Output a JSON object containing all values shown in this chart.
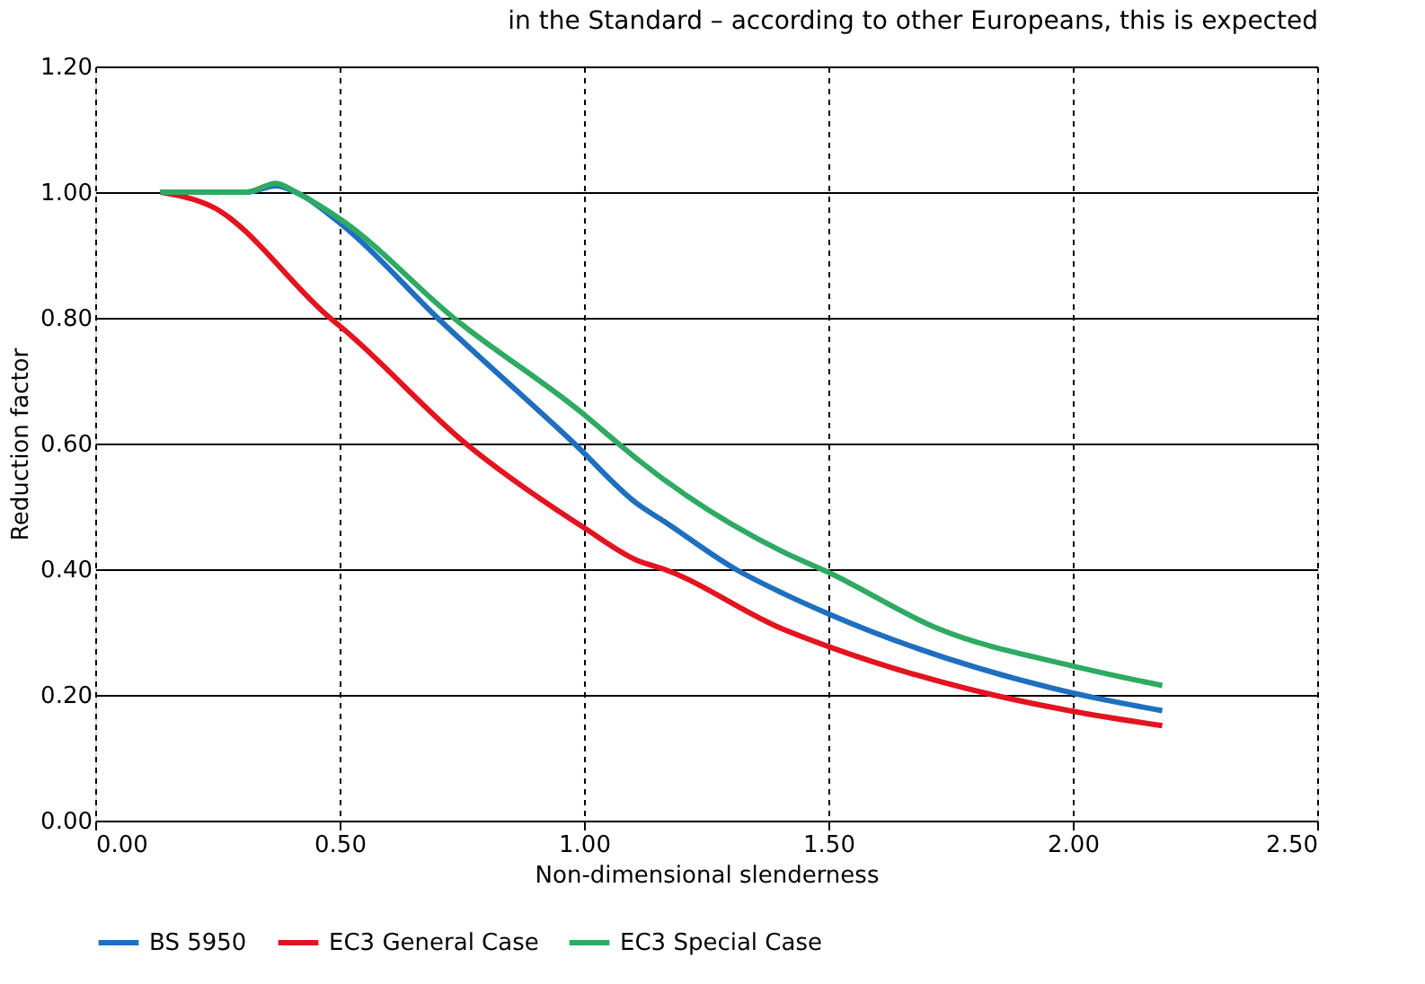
{
  "chart_data": {
    "type": "line",
    "xlabel": "Non-dimensional slenderness",
    "ylabel": "Reduction factor",
    "annotations": [
      "in the Standard – according to other Europeans, this is expected"
    ],
    "xlim": [
      0,
      2.5
    ],
    "xticks": [
      {
        "value": 0,
        "label": "0.00"
      },
      {
        "value": 0.5,
        "label": "0.50"
      },
      {
        "value": 1,
        "label": "1.00"
      },
      {
        "value": 1.5,
        "label": "1.50"
      },
      {
        "value": 2,
        "label": "2.00"
      },
      {
        "value": 2.5,
        "label": "2.50"
      }
    ],
    "ylim": [
      0,
      1.2
    ],
    "yticks": [
      {
        "value": 0,
        "label": "0.00"
      },
      {
        "value": 0.2,
        "label": "0.20"
      },
      {
        "value": 0.4,
        "label": "0.40"
      },
      {
        "value": 0.6,
        "label": "0.60"
      },
      {
        "value": 0.8,
        "label": "0.80"
      },
      {
        "value": 1,
        "label": "1.00"
      },
      {
        "value": 1.2,
        "label": "1.20"
      }
    ],
    "grid": true,
    "legend": "bottom",
    "marker": "none",
    "line_style": "solid",
    "series": [
      {
        "name": "BS 5950",
        "color": "#1f6fbf",
        "x": [
          0.133,
          0.31,
          0.37,
          0.41,
          0.505,
          0.7,
          0.98,
          1.109,
          1.164,
          1.31,
          1.406,
          1.5,
          2.0,
          2.183
        ],
        "values": [
          1.0,
          1.0,
          1.01,
          1.0,
          0.948,
          0.8,
          0.6,
          0.504,
          0.476,
          0.4,
          0.362,
          0.329,
          0.203,
          0.175
        ]
      },
      {
        "name": "EC3 General Case",
        "color": "#e3141f",
        "x": [
          0.133,
          0.236,
          0.48,
          0.505,
          0.758,
          1.0,
          1.109,
          1.164,
          1.406,
          1.5,
          1.837,
          2.0,
          2.183
        ],
        "values": [
          1.0,
          0.978,
          0.8,
          0.784,
          0.6,
          0.466,
          0.414,
          0.4,
          0.305,
          0.277,
          0.2,
          0.174,
          0.151
        ]
      },
      {
        "name": "EC3 Special Case",
        "color": "#2eaa62",
        "x": [
          0.133,
          0.31,
          0.37,
          0.41,
          0.505,
          0.733,
          1.0,
          1.07,
          1.109,
          1.406,
          1.5,
          1.726,
          2.0,
          2.183
        ],
        "values": [
          1.0,
          1.0,
          1.014,
          1.0,
          0.955,
          0.8,
          0.646,
          0.6,
          0.575,
          0.428,
          0.395,
          0.305,
          0.246,
          0.215
        ]
      }
    ]
  }
}
